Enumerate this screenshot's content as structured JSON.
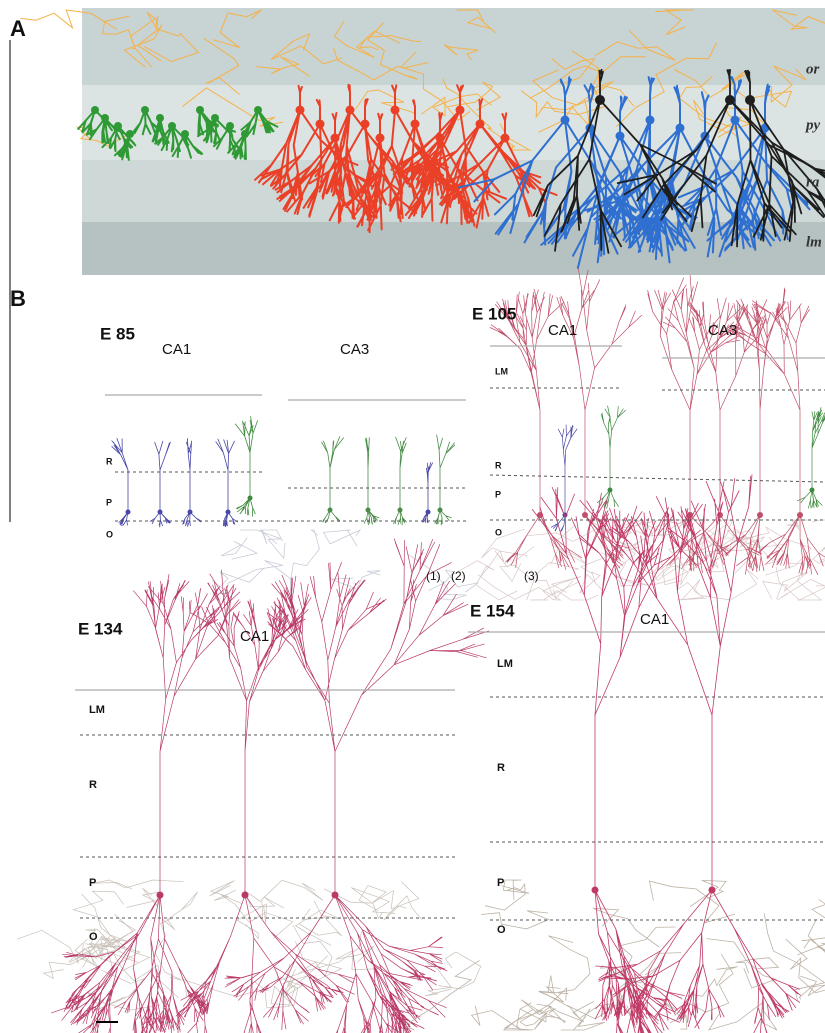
{
  "panel_a": {
    "label": "A",
    "layers": [
      "or",
      "py",
      "ra",
      "lm"
    ]
  },
  "panel_b": {
    "label": "B",
    "subpanels": [
      {
        "title": "E 85",
        "regions": [
          "CA1",
          "CA3"
        ],
        "layers": [
          "R",
          "P",
          "O"
        ],
        "cell_labels": [
          "(1)",
          "(2)"
        ]
      },
      {
        "title": "E 105",
        "regions": [
          "CA1",
          "CA3"
        ],
        "layers": [
          "LM",
          "R",
          "P",
          "O"
        ],
        "cell_labels": [
          "(3)"
        ]
      },
      {
        "title": "E 134",
        "regions": [
          "CA1"
        ],
        "layers": [
          "LM",
          "R",
          "P",
          "O"
        ]
      },
      {
        "title": "E 154",
        "regions": [
          "CA1"
        ],
        "layers": [
          "LM",
          "R",
          "P",
          "O"
        ]
      }
    ]
  }
}
